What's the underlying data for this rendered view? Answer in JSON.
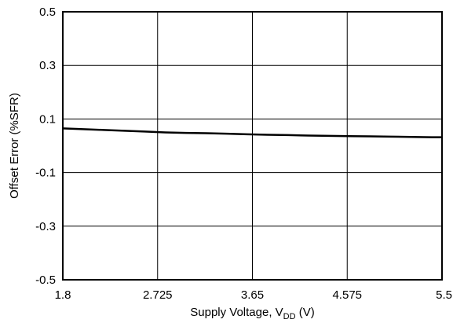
{
  "chart_data": {
    "type": "line",
    "title": "",
    "xlabel": "Supply Voltage, V",
    "xlabel_subscript": "DD",
    "xlabel_suffix": " (V)",
    "ylabel": "Offset Error (%SFR)",
    "xlim": [
      1.8,
      5.5
    ],
    "ylim": [
      -0.5,
      0.5
    ],
    "x_ticks": [
      1.8,
      2.725,
      3.65,
      4.575,
      5.5
    ],
    "x_tick_labels": [
      "1.8",
      "2.725",
      "3.65",
      "4.575",
      "5.5"
    ],
    "y_ticks": [
      -0.5,
      -0.3,
      -0.1,
      0.1,
      0.3,
      0.5
    ],
    "y_tick_labels": [
      "-0.5",
      "-0.3",
      "-0.1",
      "0.1",
      "0.3",
      "0.5"
    ],
    "grid": true,
    "legend": "none",
    "line_color": "#000000",
    "series": [
      {
        "x": [
          1.8,
          2.0,
          2.2,
          2.4,
          2.6,
          2.8,
          3.0,
          3.2,
          3.4,
          3.6,
          3.8,
          4.0,
          4.2,
          4.4,
          4.6,
          4.8,
          5.0,
          5.2,
          5.4,
          5.5
        ],
        "values": [
          0.065,
          0.062,
          0.059,
          0.056,
          0.053,
          0.05,
          0.048,
          0.047,
          0.045,
          0.043,
          0.041,
          0.04,
          0.038,
          0.037,
          0.036,
          0.035,
          0.034,
          0.033,
          0.032,
          0.032
        ]
      }
    ]
  }
}
